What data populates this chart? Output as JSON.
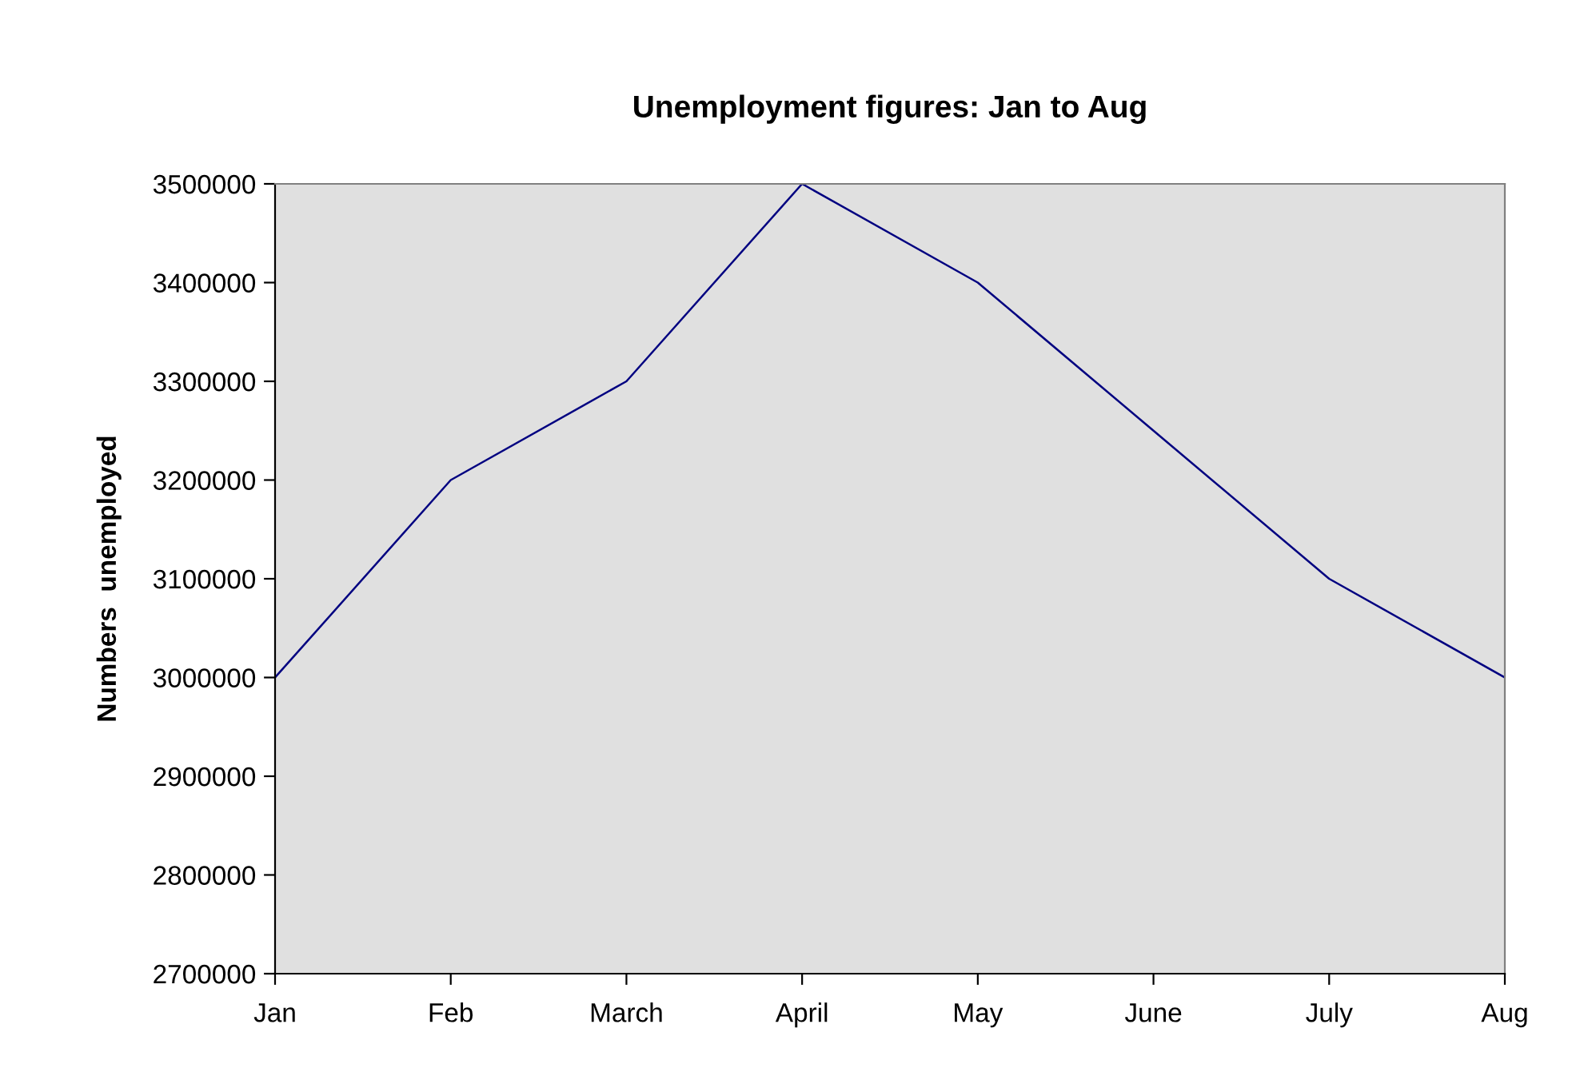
{
  "chart_data": {
    "type": "line",
    "title": "Unemployment figures: Jan to Aug",
    "ylabel": "Numbers  unemployed",
    "categories": [
      "Jan",
      "Feb",
      "March",
      "April",
      "May",
      "June",
      "July",
      "Aug"
    ],
    "series": [
      {
        "color": "#000080",
        "values": [
          3000000,
          3200000,
          3300000,
          3500000,
          3400000,
          3250000,
          3100000,
          3000000
        ]
      }
    ],
    "ylim": [
      2700000,
      3500000
    ],
    "yticks": [
      2700000,
      2800000,
      2900000,
      3000000,
      3100000,
      3200000,
      3300000,
      3400000,
      3500000
    ],
    "grid": false,
    "legend": false,
    "marker": "none",
    "line_style": "solid"
  }
}
